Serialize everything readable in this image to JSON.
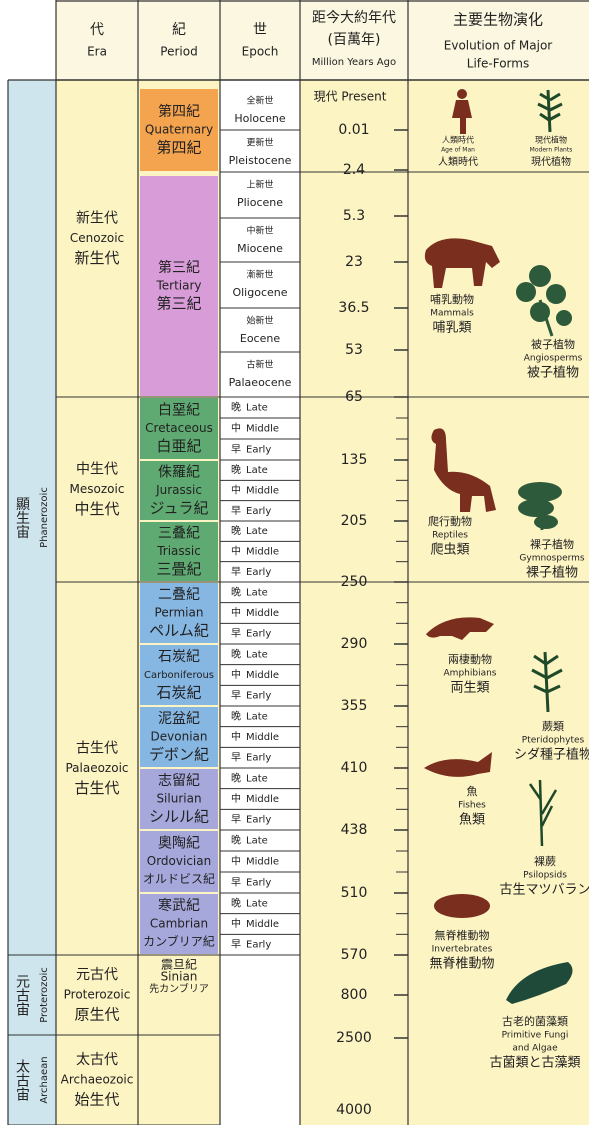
{
  "header": {
    "era": {
      "zh": "代",
      "en": "Era"
    },
    "period": {
      "zh": "紀",
      "en": "Period"
    },
    "epoch": {
      "zh": "世",
      "en": "Epoch"
    },
    "age": {
      "zh": "距今大約年代",
      "unit": "(百萬年)",
      "en": "Million Years Ago"
    },
    "life": {
      "zh": "主要生物演化",
      "en": [
        "Evolution of Major",
        "Life-Forms"
      ]
    }
  },
  "eons": [
    {
      "zh": "顯生宙",
      "en": "Phanerozoic"
    },
    {
      "zh": "元古宙",
      "en": "Proterozoic"
    },
    {
      "zh": "太古宙",
      "en": "Archaean"
    }
  ],
  "eras": [
    {
      "zh": "新生代",
      "en": "Cenozoic",
      "alt": "新生代"
    },
    {
      "zh": "中生代",
      "en": "Mesozoic",
      "alt": "中生代"
    },
    {
      "zh": "古生代",
      "en": "Palaeozoic",
      "alt": "古生代"
    },
    {
      "zh": "元古代",
      "en": "Proterozoic",
      "alt": "原生代"
    },
    {
      "zh": "太古代",
      "en": "Archaeozoic",
      "alt": "始生代"
    }
  ],
  "periods": [
    {
      "zh": "第四紀",
      "en": "Quaternary",
      "alt": "第四紀"
    },
    {
      "zh": "第三紀",
      "en": "Tertiary",
      "alt": "第三紀"
    },
    {
      "zh": "白堊紀",
      "en": "Cretaceous",
      "alt": "白亜紀"
    },
    {
      "zh": "侏羅紀",
      "en": "Jurassic",
      "alt": "ジュラ紀"
    },
    {
      "zh": "三叠紀",
      "en": "Triassic",
      "alt": "三畳紀"
    },
    {
      "zh": "二叠紀",
      "en": "Permian",
      "alt": "ペルム紀"
    },
    {
      "zh": "石炭紀",
      "en": "Carboniferous",
      "alt": "石炭紀"
    },
    {
      "zh": "泥盆紀",
      "en": "Devonian",
      "alt": "デボン紀"
    },
    {
      "zh": "志留紀",
      "en": "Silurian",
      "alt": "シルル紀"
    },
    {
      "zh": "奧陶紀",
      "en": "Ordovician",
      "alt": "オルドビス紀"
    },
    {
      "zh": "寒武紀",
      "en": "Cambrian",
      "alt": "カンブリア紀"
    },
    {
      "zh": "震旦紀",
      "en": "Sinian",
      "alt": "先カンブリア"
    }
  ],
  "epochs": [
    {
      "zh": "全新世",
      "en": "Holocene"
    },
    {
      "zh": "更新世",
      "en": "Pleistocene"
    },
    {
      "zh": "上新世",
      "en": "Pliocene"
    },
    {
      "zh": "中新世",
      "en": "Miocene"
    },
    {
      "zh": "漸新世",
      "en": "Oligocene"
    },
    {
      "zh": "始新世",
      "en": "Eocene"
    },
    {
      "zh": "古新世",
      "en": "Palaeocene"
    }
  ],
  "subdivisions": [
    {
      "zh": "晚",
      "en": "Late"
    },
    {
      "zh": "中",
      "en": "Middle"
    },
    {
      "zh": "早",
      "en": "Early"
    }
  ],
  "ages": [
    "現代 Present",
    0.01,
    2.4,
    5.3,
    23,
    36.5,
    53,
    65,
    135,
    205,
    250,
    290,
    355,
    410,
    438,
    510,
    570,
    800,
    2500,
    4000
  ],
  "life_forms": [
    {
      "zh": "人類時代",
      "en": [
        "Age of Man"
      ],
      "alt": "人類時代"
    },
    {
      "zh": "現代植物",
      "en": [
        "Modern Plants"
      ],
      "alt": "現代植物"
    },
    {
      "zh": "哺乳動物",
      "en": [
        "Mammals"
      ],
      "alt": "哺乳類"
    },
    {
      "zh": "被子植物",
      "en": [
        "Angiosperms"
      ],
      "alt": "被子植物"
    },
    {
      "zh": "爬行動物",
      "en": [
        "Reptiles"
      ],
      "alt": "爬虫類"
    },
    {
      "zh": "裸子植物",
      "en": [
        "Gymnosperms"
      ],
      "alt": "裸子植物"
    },
    {
      "zh": "兩棲動物",
      "en": [
        "Amphibians"
      ],
      "alt": "両生類"
    },
    {
      "zh": "蕨類",
      "en": [
        "Pteridophytes"
      ],
      "alt": "シダ種子植物"
    },
    {
      "zh": "魚",
      "en": [
        "Fishes"
      ],
      "alt": "魚類"
    },
    {
      "zh": "裸蕨",
      "en": [
        "Psilopsids"
      ],
      "alt": "古生マツバラン"
    },
    {
      "zh": "無脊椎動物",
      "en": [
        "Invertebrates"
      ],
      "alt": "無脊椎動物"
    },
    {
      "zh": "古老的菌藻類",
      "en": [
        "Primitive Fungi",
        "and Algae"
      ],
      "alt": "古菌類と古藻類"
    }
  ]
}
